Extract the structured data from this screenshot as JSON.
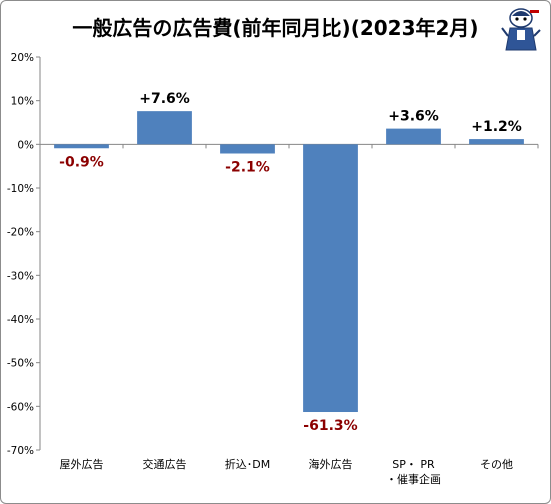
{
  "title": "一般広告の広告費(前年同月比)(2023年2月)",
  "chart_data": {
    "type": "bar",
    "title": "一般広告の広告費(前年同月比)(2023年2月)",
    "categories": [
      "屋外広告",
      "交通広告",
      "折込･DM",
      "海外広告",
      "SP・PR・催事企画",
      "その他"
    ],
    "category_display": [
      [
        "屋外広告"
      ],
      [
        "交通広告"
      ],
      [
        "折込･DM"
      ],
      [
        "海外広告"
      ],
      [
        "SP・ PR",
        "・催事企画"
      ],
      [
        "その他"
      ]
    ],
    "values": [
      -0.9,
      7.6,
      -2.1,
      -61.3,
      3.6,
      1.2
    ],
    "value_labels": [
      "-0.9%",
      "+7.6%",
      "-2.1%",
      "-61.3%",
      "+3.6%",
      "+1.2%"
    ],
    "ylim": [
      -70,
      20
    ],
    "yticks": [
      20,
      10,
      0,
      -10,
      -20,
      -30,
      -40,
      -50,
      -60,
      -70
    ],
    "ytick_labels": [
      "20%",
      "10%",
      "0%",
      "-10%",
      "-20%",
      "-30%",
      "-40%",
      "-50%",
      "-60%",
      "-70%"
    ],
    "xlabel": "",
    "ylabel": "",
    "grid": false,
    "colors": {
      "bar": "#4f81bd",
      "positive_label": "#000000",
      "negative_label": "#8b0000"
    }
  },
  "mascot": {
    "icon": "reporter-mascot-icon"
  }
}
